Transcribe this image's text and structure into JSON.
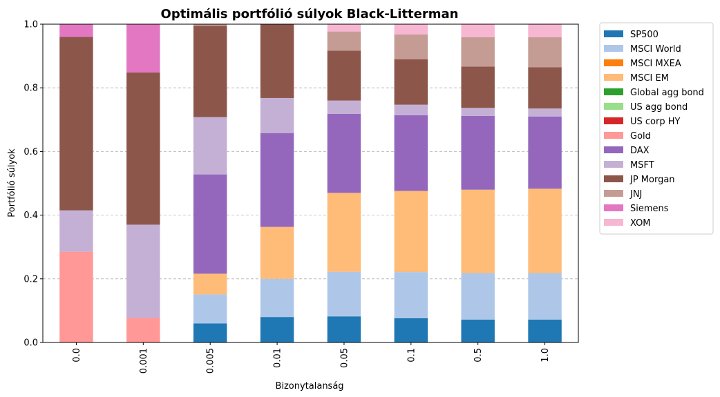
{
  "chart_data": {
    "type": "bar",
    "stacked": true,
    "title": "Optimális portfólió súlyok Black-Litterman",
    "xlabel": "Bizonytalanság",
    "ylabel": "Portfólió súlyok",
    "ylim": [
      0,
      1.0
    ],
    "yticks": [
      "0.0",
      "0.2",
      "0.4",
      "0.6",
      "0.8",
      "1.0"
    ],
    "grid": "y-dashed",
    "legend_position": "outside-right-top",
    "categories": [
      "0.0",
      "0.001",
      "0.005",
      "0.01",
      "0.05",
      "0.1",
      "0.5",
      "1.0"
    ],
    "series": [
      {
        "name": "SP500",
        "color": "#1f77b4",
        "values": [
          0,
          0,
          0.06,
          0.08,
          0.082,
          0.076,
          0.072,
          0.072
        ]
      },
      {
        "name": "MSCI World",
        "color": "#aec7e8",
        "values": [
          0,
          0,
          0.091,
          0.12,
          0.14,
          0.145,
          0.146,
          0.146
        ]
      },
      {
        "name": "MSCI MXEA",
        "color": "#ff7f0e",
        "values": [
          0,
          0,
          0,
          0,
          0,
          0,
          0,
          0
        ]
      },
      {
        "name": "MSCI EM",
        "color": "#ffbb78",
        "values": [
          0,
          0,
          0.065,
          0.163,
          0.248,
          0.255,
          0.262,
          0.265
        ]
      },
      {
        "name": "Global agg bond",
        "color": "#2ca02c",
        "values": [
          0,
          0,
          0,
          0,
          0,
          0,
          0,
          0
        ]
      },
      {
        "name": "US agg bond",
        "color": "#98df8a",
        "values": [
          0,
          0,
          0,
          0,
          0,
          0,
          0,
          0
        ]
      },
      {
        "name": "US corp HY",
        "color": "#d62728",
        "values": [
          0,
          0,
          0,
          0,
          0,
          0,
          0,
          0
        ]
      },
      {
        "name": "Gold",
        "color": "#ff9896",
        "values": [
          0.285,
          0.077,
          0,
          0,
          0,
          0,
          0,
          0
        ]
      },
      {
        "name": "DAX",
        "color": "#9467bd",
        "values": [
          0,
          0,
          0.312,
          0.295,
          0.248,
          0.238,
          0.232,
          0.227
        ]
      },
      {
        "name": "MSFT",
        "color": "#c5b0d5",
        "values": [
          0.13,
          0.293,
          0.18,
          0.11,
          0.042,
          0.033,
          0.025,
          0.025
        ]
      },
      {
        "name": "JP Morgan",
        "color": "#8c564b",
        "values": [
          0.545,
          0.478,
          0.287,
          0.232,
          0.157,
          0.143,
          0.13,
          0.13
        ]
      },
      {
        "name": "JNJ",
        "color": "#c49c94",
        "values": [
          0,
          0,
          0.005,
          0,
          0.06,
          0.078,
          0.092,
          0.094
        ]
      },
      {
        "name": "Siemens",
        "color": "#e377c2",
        "values": [
          0.04,
          0.152,
          0,
          0,
          0,
          0,
          0,
          0
        ]
      },
      {
        "name": "XOM",
        "color": "#f7b6d2",
        "values": [
          0,
          0,
          0,
          0,
          0.023,
          0.032,
          0.041,
          0.041
        ]
      }
    ]
  }
}
